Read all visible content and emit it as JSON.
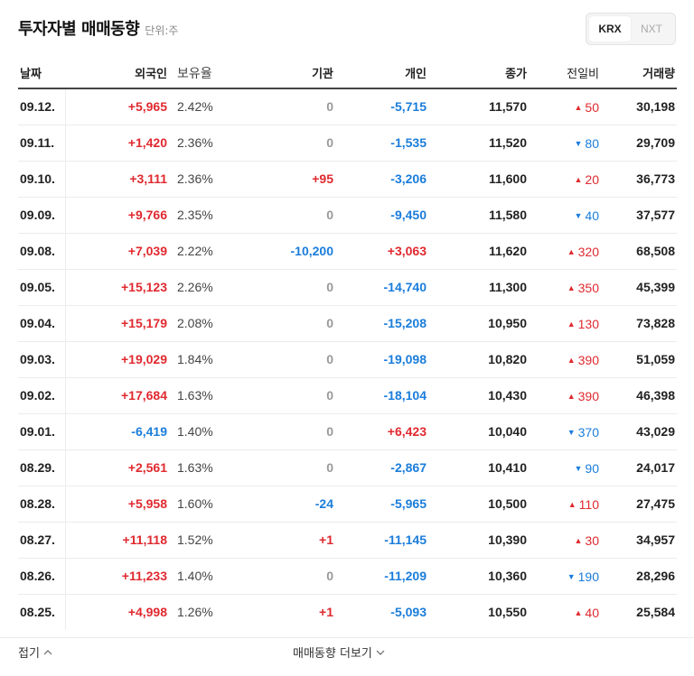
{
  "header": {
    "title": "투자자별 매매동향",
    "unit": "단위:주"
  },
  "exchange": {
    "options": [
      "KRX",
      "NXT"
    ],
    "selected": "KRX"
  },
  "columns": [
    "날짜",
    "외국인",
    "보유율",
    "기관",
    "개인",
    "종가",
    "전일비",
    "거래량"
  ],
  "rows": [
    {
      "date": "09.12.",
      "foreign": "+5,965",
      "foreign_dir": "up",
      "holding": "2.42%",
      "inst": "0",
      "inst_dir": "flat",
      "indiv": "-5,715",
      "indiv_dir": "down",
      "close": "11,570",
      "chg": "50",
      "chg_dir": "up",
      "volume": "30,198"
    },
    {
      "date": "09.11.",
      "foreign": "+1,420",
      "foreign_dir": "up",
      "holding": "2.36%",
      "inst": "0",
      "inst_dir": "flat",
      "indiv": "-1,535",
      "indiv_dir": "down",
      "close": "11,520",
      "chg": "80",
      "chg_dir": "down",
      "volume": "29,709"
    },
    {
      "date": "09.10.",
      "foreign": "+3,111",
      "foreign_dir": "up",
      "holding": "2.36%",
      "inst": "+95",
      "inst_dir": "up",
      "indiv": "-3,206",
      "indiv_dir": "down",
      "close": "11,600",
      "chg": "20",
      "chg_dir": "up",
      "volume": "36,773"
    },
    {
      "date": "09.09.",
      "foreign": "+9,766",
      "foreign_dir": "up",
      "holding": "2.35%",
      "inst": "0",
      "inst_dir": "flat",
      "indiv": "-9,450",
      "indiv_dir": "down",
      "close": "11,580",
      "chg": "40",
      "chg_dir": "down",
      "volume": "37,577"
    },
    {
      "date": "09.08.",
      "foreign": "+7,039",
      "foreign_dir": "up",
      "holding": "2.22%",
      "inst": "-10,200",
      "inst_dir": "down",
      "indiv": "+3,063",
      "indiv_dir": "up",
      "close": "11,620",
      "chg": "320",
      "chg_dir": "up",
      "volume": "68,508"
    },
    {
      "date": "09.05.",
      "foreign": "+15,123",
      "foreign_dir": "up",
      "holding": "2.26%",
      "inst": "0",
      "inst_dir": "flat",
      "indiv": "-14,740",
      "indiv_dir": "down",
      "close": "11,300",
      "chg": "350",
      "chg_dir": "up",
      "volume": "45,399"
    },
    {
      "date": "09.04.",
      "foreign": "+15,179",
      "foreign_dir": "up",
      "holding": "2.08%",
      "inst": "0",
      "inst_dir": "flat",
      "indiv": "-15,208",
      "indiv_dir": "down",
      "close": "10,950",
      "chg": "130",
      "chg_dir": "up",
      "volume": "73,828"
    },
    {
      "date": "09.03.",
      "foreign": "+19,029",
      "foreign_dir": "up",
      "holding": "1.84%",
      "inst": "0",
      "inst_dir": "flat",
      "indiv": "-19,098",
      "indiv_dir": "down",
      "close": "10,820",
      "chg": "390",
      "chg_dir": "up",
      "volume": "51,059"
    },
    {
      "date": "09.02.",
      "foreign": "+17,684",
      "foreign_dir": "up",
      "holding": "1.63%",
      "inst": "0",
      "inst_dir": "flat",
      "indiv": "-18,104",
      "indiv_dir": "down",
      "close": "10,430",
      "chg": "390",
      "chg_dir": "up",
      "volume": "46,398"
    },
    {
      "date": "09.01.",
      "foreign": "-6,419",
      "foreign_dir": "down",
      "holding": "1.40%",
      "inst": "0",
      "inst_dir": "flat",
      "indiv": "+6,423",
      "indiv_dir": "up",
      "close": "10,040",
      "chg": "370",
      "chg_dir": "down",
      "volume": "43,029"
    },
    {
      "date": "08.29.",
      "foreign": "+2,561",
      "foreign_dir": "up",
      "holding": "1.63%",
      "inst": "0",
      "inst_dir": "flat",
      "indiv": "-2,867",
      "indiv_dir": "down",
      "close": "10,410",
      "chg": "90",
      "chg_dir": "down",
      "volume": "24,017"
    },
    {
      "date": "08.28.",
      "foreign": "+5,958",
      "foreign_dir": "up",
      "holding": "1.60%",
      "inst": "-24",
      "inst_dir": "down",
      "indiv": "-5,965",
      "indiv_dir": "down",
      "close": "10,500",
      "chg": "110",
      "chg_dir": "up",
      "volume": "27,475"
    },
    {
      "date": "08.27.",
      "foreign": "+11,118",
      "foreign_dir": "up",
      "holding": "1.52%",
      "inst": "+1",
      "inst_dir": "up",
      "indiv": "-11,145",
      "indiv_dir": "down",
      "close": "10,390",
      "chg": "30",
      "chg_dir": "up",
      "volume": "34,957"
    },
    {
      "date": "08.26.",
      "foreign": "+11,233",
      "foreign_dir": "up",
      "holding": "1.40%",
      "inst": "0",
      "inst_dir": "flat",
      "indiv": "-11,209",
      "indiv_dir": "down",
      "close": "10,360",
      "chg": "190",
      "chg_dir": "down",
      "volume": "28,296"
    },
    {
      "date": "08.25.",
      "foreign": "+4,998",
      "foreign_dir": "up",
      "holding": "1.26%",
      "inst": "+1",
      "inst_dir": "up",
      "indiv": "-5,093",
      "indiv_dir": "down",
      "close": "10,550",
      "chg": "40",
      "chg_dir": "up",
      "volume": "25,584"
    }
  ],
  "footer": {
    "fold_label": "접기",
    "more_label": "매매동향 더보기"
  },
  "colors": {
    "up": "#e0292f",
    "down": "#1a7ddb",
    "flat": "#999999"
  }
}
